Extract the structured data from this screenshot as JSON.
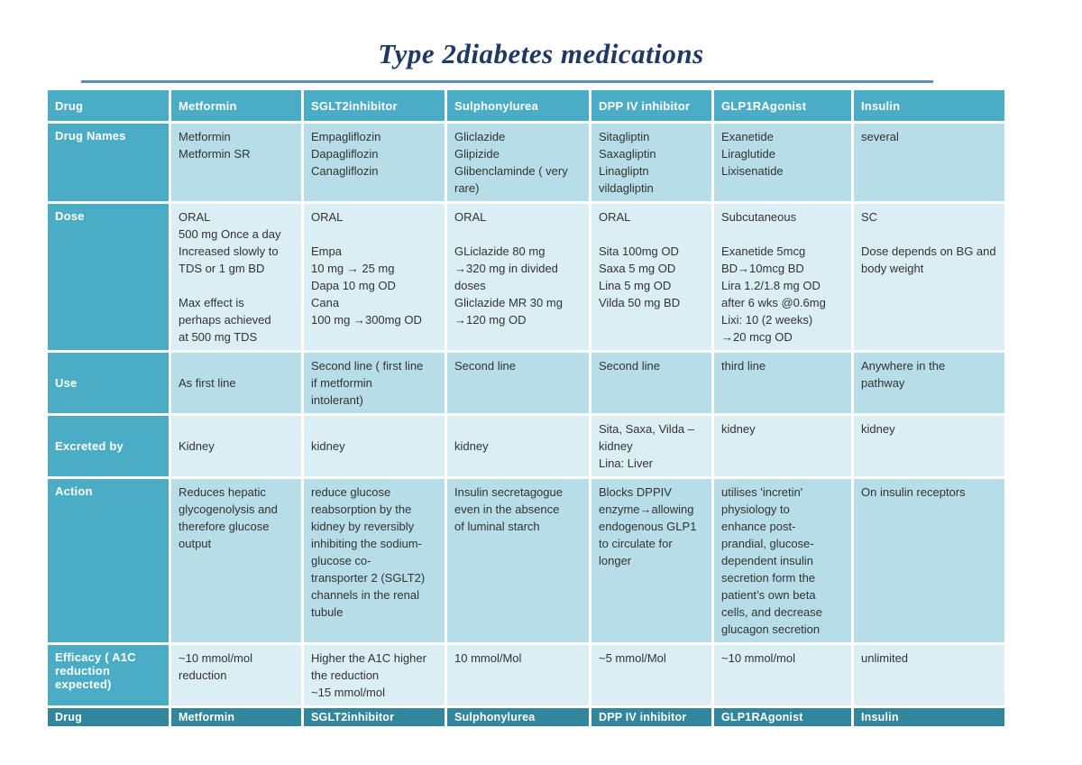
{
  "title": "Type 2diabetes medications",
  "colors": {
    "header_bg": "#4BACC6",
    "footer_bg": "#31859C",
    "band_dark": "#B6DDE8",
    "band_light": "#DAEEF3",
    "title_color": "#1F3864",
    "rule_color": "#5B8AC9",
    "cell_text": "#333333"
  },
  "table": {
    "header": [
      "Drug",
      "Metformin",
      "SGLT2inhibitor",
      "Sulphonylurea",
      "DPP IV inhibitor",
      "GLP1RAgonist",
      "Insulin"
    ],
    "rows": [
      {
        "label": "Drug Names",
        "cells": [
          "Metformin\nMetformin SR",
          "Empagliflozin\nDapagliflozin\nCanagliflozin",
          "Gliclazide\nGlipizide\nGlibenclaminde ( very\nrare)",
          "Sitagliptin\nSaxagliptin\nLinagliptn\nvildagliptin",
          "Exanetide\nLiraglutide\nLixisenatide",
          "several"
        ]
      },
      {
        "label": "Dose",
        "cells": [
          "ORAL\n500 mg Once a day\nIncreased slowly to\nTDS or 1 gm BD\n\nMax effect is\nperhaps achieved\nat 500 mg TDS",
          "ORAL\n\nEmpa\n10 mg    →    25 mg\nDapa 10 mg OD\nCana\n100 mg →300mg OD",
          "ORAL\n\nGLiclazide 80 mg\n→320 mg in divided\ndoses\nGliclazide MR 30 mg\n→120 mg OD",
          "ORAL\n\nSita 100mg OD\nSaxa 5 mg OD\nLina 5 mg OD\nVilda 50 mg BD",
          "Subcutaneous\n\nExanetide 5mcg\nBD→10mcg BD\nLira 1.2/1.8 mg OD\nafter 6 wks @0.6mg\nLixi: 10 (2 weeks)\n→20 mcg OD",
          "SC\n\nDose depends on BG and\nbody weight"
        ]
      },
      {
        "label": "Use",
        "cells": [
          "As first line",
          "Second line ( first line\nif metformin\nintolerant)",
          "Second line",
          "Second line",
          "third line",
          "Anywhere in the\npathway"
        ]
      },
      {
        "label": "Excreted by",
        "cells": [
          "Kidney",
          "kidney",
          "kidney",
          "Sita, Saxa, Vilda –\nkidney\nLina: Liver",
          "kidney",
          "kidney"
        ]
      },
      {
        "label": "Action",
        "cells": [
          "Reduces hepatic\nglycogenolysis and\ntherefore glucose\noutput",
          "reduce glucose\nreabsorption by the\nkidney by reversibly\ninhibiting the sodium-\nglucose co-\ntransporter 2 (SGLT2)\nchannels in the renal\ntubule",
          "Insulin secretagogue\neven in the absence\nof luminal starch",
          "Blocks DPPIV\nenzyme→allowing\nendogenous GLP1\nto circulate for\nlonger",
          "utilises 'incretin'\nphysiology to\nenhance post-\nprandial, glucose-\ndependent insulin\nsecretion form the\npatient’s own beta\ncells, and decrease\nglucagon secretion",
          "On insulin receptors"
        ]
      },
      {
        "label": "Efficacy ( A1C\nreduction\nexpected)",
        "cells": [
          "~10 mmol/mol\nreduction",
          "Higher the A1C higher\nthe reduction\n~15 mmol/mol",
          "10 mmol/Mol",
          "~5 mmol/Mol",
          "~10 mmol/mol",
          "unlimited"
        ]
      }
    ],
    "footer": [
      "Drug",
      "Metformin",
      "SGLT2inhibitor",
      "Sulphonylurea",
      "DPP IV inhibitor",
      "GLP1RAgonist",
      "Insulin"
    ]
  }
}
